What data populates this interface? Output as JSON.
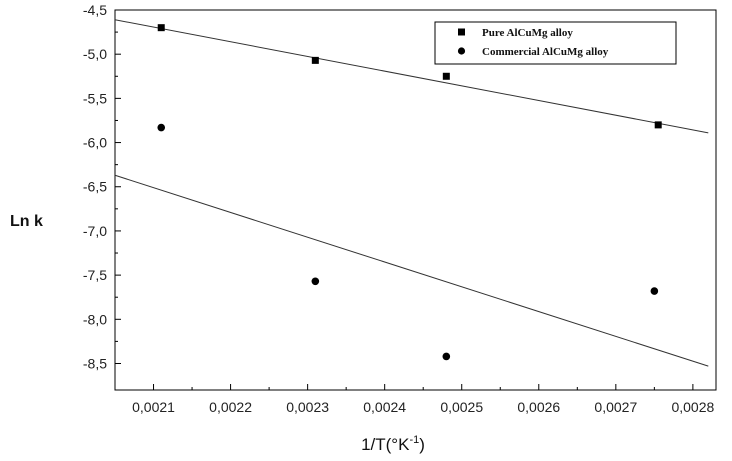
{
  "chart_data": {
    "type": "scatter",
    "title": "",
    "xlabel": "1/T(°K",
    "xlabel_sup": "-1",
    "xlabel_tail": ")",
    "ylabel": "Ln k",
    "xlim": [
      0.00205,
      0.00283
    ],
    "ylim": [
      -8.8,
      -4.5
    ],
    "grid": false,
    "legend_position": "top-right",
    "x_ticks": [
      0.0021,
      0.0022,
      0.0023,
      0.0024,
      0.0025,
      0.0026,
      0.0027,
      0.0028
    ],
    "x_tick_labels": [
      "0,0021",
      "0,0022",
      "0,0023",
      "0,0024",
      "0,0025",
      "0,0026",
      "0,0027",
      "0,0028"
    ],
    "y_ticks": [
      -4.5,
      -5.0,
      -5.5,
      -6.0,
      -6.5,
      -7.0,
      -7.5,
      -8.0,
      -8.5
    ],
    "y_tick_labels": [
      "-4,5",
      "-5,0",
      "-5,5",
      "-6,0",
      "-6,5",
      "-7,0",
      "-7,5",
      "-8,0",
      "-8,5"
    ],
    "series": [
      {
        "name": "Pure AlCuMg alloy",
        "marker": "square",
        "color": "#000000",
        "points": [
          {
            "x": 0.00211,
            "y": -4.7
          },
          {
            "x": 0.00231,
            "y": -5.07
          },
          {
            "x": 0.00248,
            "y": -5.25
          },
          {
            "x": 0.002755,
            "y": -5.8
          }
        ],
        "fit": {
          "x1": 0.00205,
          "y1": -4.61,
          "x2": 0.00282,
          "y2": -5.89
        }
      },
      {
        "name": "Commercial AlCuMg alloy",
        "marker": "circle",
        "color": "#000000",
        "points": [
          {
            "x": 0.00211,
            "y": -5.83
          },
          {
            "x": 0.00231,
            "y": -7.57
          },
          {
            "x": 0.00248,
            "y": -8.42
          },
          {
            "x": 0.00275,
            "y": -7.68
          }
        ],
        "fit": {
          "x1": 0.00205,
          "y1": -6.37,
          "x2": 0.00282,
          "y2": -8.53
        }
      }
    ]
  }
}
